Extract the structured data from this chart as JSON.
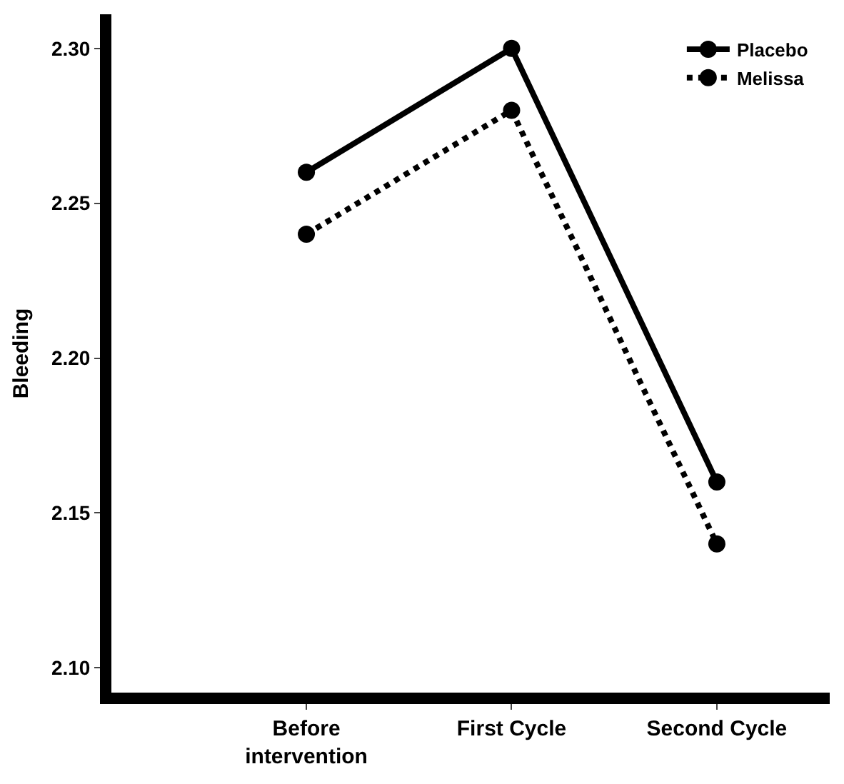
{
  "chart_data": {
    "type": "line",
    "ylabel": "Bleeding",
    "categories": [
      "Before\nintervention",
      "First Cycle",
      "Second Cycle"
    ],
    "series": [
      {
        "name": "Placebo",
        "color": "#000000",
        "values": [
          2.26,
          2.3,
          2.16
        ],
        "line_style": "solid"
      },
      {
        "name": "Melissa",
        "color": "#000000",
        "values": [
          2.24,
          2.28,
          2.14
        ],
        "line_style": "dotted"
      }
    ],
    "ylim": [
      2.092,
      2.311
    ],
    "yticks": [
      {
        "value": 2.1,
        "label": "2.10"
      },
      2.15,
      {
        "value": 2.2,
        "label": "2.20"
      },
      2.25,
      {
        "value": 2.3,
        "label": "2.30"
      }
    ],
    "marker": "circle",
    "legend": "top right"
  }
}
